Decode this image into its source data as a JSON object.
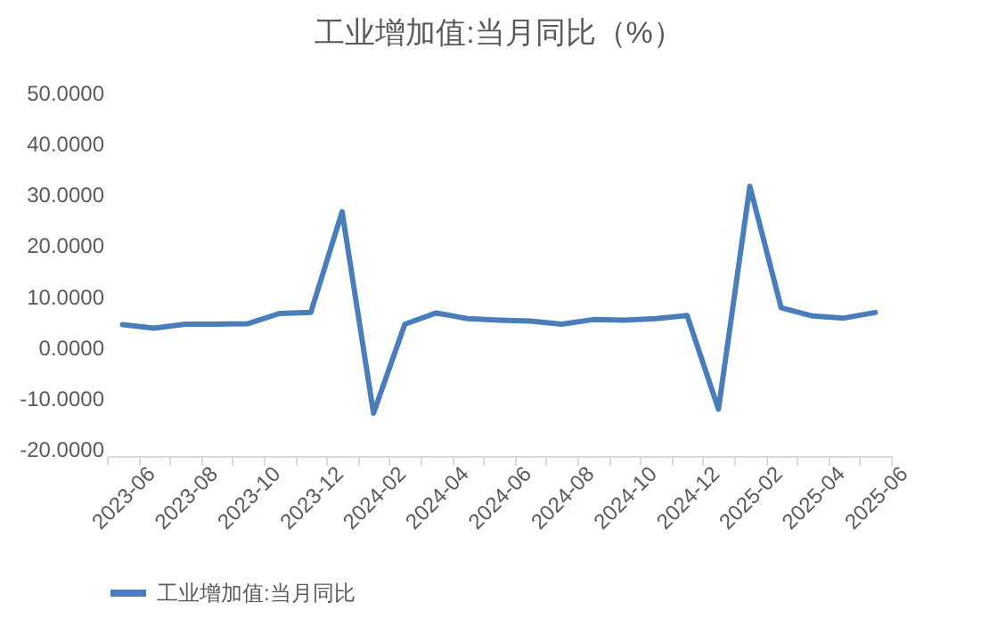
{
  "chart_data": {
    "type": "line",
    "title": "工业增加值:当月同比（%）",
    "categories": [
      "2023-06",
      null,
      "2023-08",
      null,
      "2023-10",
      null,
      "2023-12",
      null,
      "2024-02",
      null,
      "2024-04",
      null,
      "2024-06",
      null,
      "2024-08",
      null,
      "2024-10",
      null,
      "2024-12",
      null,
      "2025-02",
      null,
      "2025-04",
      null,
      "2025-06"
    ],
    "series": [
      {
        "name": "工业增加值:当月同比",
        "color": "#4a7ebb",
        "values": [
          4.4,
          3.7,
          4.5,
          4.5,
          4.6,
          6.6,
          6.8,
          26.6,
          -13,
          4.5,
          6.7,
          5.6,
          5.3,
          5.1,
          4.5,
          5.4,
          5.3,
          5.6,
          6.2,
          -12.2,
          31.6,
          7.7,
          6.1,
          5.7,
          6.8
        ]
      }
    ],
    "ylim": [
      -20,
      50
    ],
    "yticks": [
      {
        "value": -20,
        "label": "-20.0000"
      },
      {
        "value": -10,
        "label": "-10.0000"
      },
      {
        "value": 0,
        "label": "0.0000"
      },
      {
        "value": 10,
        "label": "10.0000"
      },
      {
        "value": 20,
        "label": "20.0000"
      },
      {
        "value": 30,
        "label": "30.0000"
      },
      {
        "value": 40,
        "label": "40.0000"
      },
      {
        "value": 50,
        "label": "50.0000"
      }
    ],
    "grid": false,
    "legend": "bottom"
  }
}
